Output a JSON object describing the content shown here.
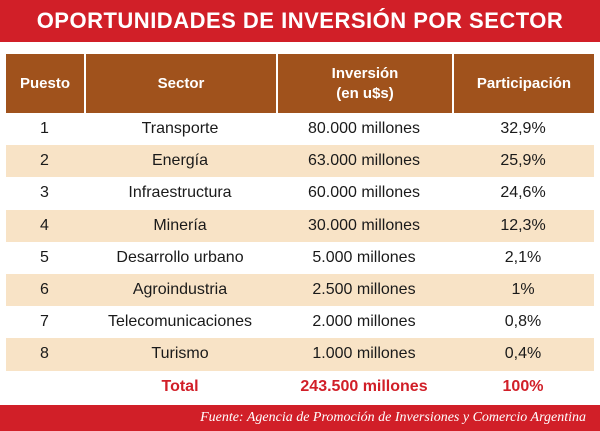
{
  "title": "OPORTUNIDADES DE INVERSIÓN POR SECTOR",
  "headers": {
    "puesto": "Puesto",
    "sector": "Sector",
    "inversion_line1": "Inversión",
    "inversion_line2": "(en u$s)",
    "participacion": "Participación"
  },
  "rows": [
    {
      "puesto": "1",
      "sector": "Transporte",
      "inversion": "80.000 millones",
      "participacion": "32,9%"
    },
    {
      "puesto": "2",
      "sector": "Energía",
      "inversion": "63.000 millones",
      "participacion": "25,9%"
    },
    {
      "puesto": "3",
      "sector": "Infraestructura",
      "inversion": "60.000 millones",
      "participacion": "24,6%"
    },
    {
      "puesto": "4",
      "sector": "Minería",
      "inversion": "30.000 millones",
      "participacion": "12,3%"
    },
    {
      "puesto": "5",
      "sector": "Desarrollo urbano",
      "inversion": "5.000 millones",
      "participacion": "2,1%"
    },
    {
      "puesto": "6",
      "sector": "Agroindustria",
      "inversion": "2.500 millones",
      "participacion": "1%"
    },
    {
      "puesto": "7",
      "sector": "Telecomunicaciones",
      "inversion": "2.000 millones",
      "participacion": "0,8%"
    },
    {
      "puesto": "8",
      "sector": "Turismo",
      "inversion": "1.000 millones",
      "participacion": "0,4%"
    }
  ],
  "total": {
    "label": "Total",
    "inversion": "243.500 millones",
    "participacion": "100%"
  },
  "source": "Fuente: Agencia de Promoción de Inversiones y Comercio Argentina",
  "colors": {
    "banner_red": "#d11f28",
    "header_brown": "#a0521c",
    "row_shade": "#f8e3c6"
  }
}
